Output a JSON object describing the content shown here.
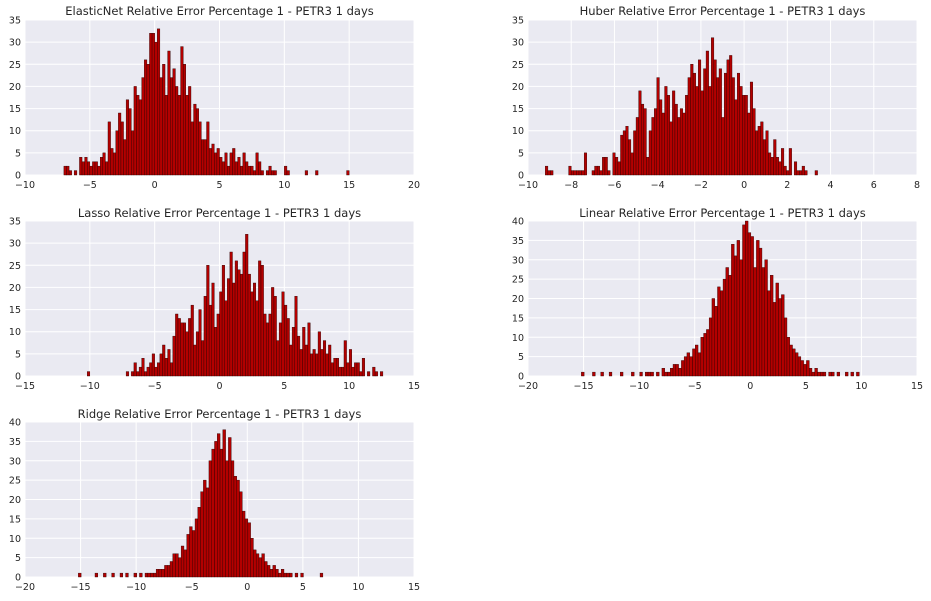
{
  "figure": {
    "background": "#ffffff",
    "axes_background": "#eaeaf2",
    "grid_color": "#ffffff",
    "bar_color": "#b30000",
    "bar_edge_color": "#2b0000"
  },
  "chart_data": [
    {
      "type": "bar",
      "title": "ElasticNet Relative Error Percentage 1 - PETR3 1 days",
      "xlabel": "",
      "ylabel": "",
      "xlim": [
        -10,
        20
      ],
      "ylim": [
        0,
        35
      ],
      "xticks": [
        "−10",
        "−5",
        "0",
        "5",
        "10",
        "15",
        "20"
      ],
      "xtick_values": [
        -10,
        -5,
        0,
        5,
        10,
        15,
        20
      ],
      "yticks": [
        "0",
        "5",
        "10",
        "15",
        "20",
        "25",
        "30",
        "35"
      ],
      "ytick_values": [
        0,
        5,
        10,
        15,
        20,
        25,
        30,
        35
      ],
      "grid": true,
      "bin_start": -7,
      "bin_width": 0.2,
      "values": [
        2,
        2,
        1,
        0,
        1,
        0,
        4,
        3,
        4,
        3,
        2,
        3,
        3,
        2,
        4,
        5,
        3,
        12,
        6,
        5,
        10,
        14,
        12,
        8,
        17,
        15,
        10,
        20,
        18,
        17,
        22,
        26,
        25,
        32,
        32,
        30,
        33,
        22,
        25,
        18,
        28,
        22,
        24,
        20,
        18,
        29,
        25,
        18,
        20,
        12,
        16,
        15,
        12,
        8,
        8,
        12,
        6,
        7,
        5,
        6,
        4,
        3,
        5,
        2,
        5,
        6,
        3,
        4,
        2,
        5,
        3,
        2,
        2,
        1,
        5,
        3,
        1,
        0,
        1,
        2,
        1,
        1,
        0,
        0,
        0,
        2,
        1,
        0,
        0,
        0,
        0,
        0,
        0,
        1,
        0,
        0,
        0,
        1,
        0,
        0,
        0,
        0,
        0,
        0,
        0,
        0,
        0,
        0,
        0,
        1
      ]
    },
    {
      "type": "bar",
      "title": "Huber Relative Error Percentage 1 - PETR3 1 days",
      "xlabel": "",
      "ylabel": "",
      "xlim": [
        -10,
        8
      ],
      "ylim": [
        0,
        35
      ],
      "xticks": [
        "−10",
        "−8",
        "−6",
        "−4",
        "−2",
        "0",
        "2",
        "4",
        "6",
        "8"
      ],
      "xtick_values": [
        -10,
        -8,
        -6,
        -4,
        -2,
        0,
        2,
        4,
        6,
        8
      ],
      "yticks": [
        "0",
        "5",
        "10",
        "15",
        "20",
        "25",
        "30",
        "35"
      ],
      "ytick_values": [
        0,
        5,
        10,
        15,
        20,
        25,
        30,
        35
      ],
      "grid": true,
      "bin_start": -9.2,
      "bin_width": 0.12,
      "values": [
        2,
        1,
        1,
        0,
        0,
        0,
        0,
        0,
        0,
        2,
        1,
        1,
        1,
        1,
        1,
        5,
        0,
        0,
        1,
        2,
        2,
        1,
        4,
        4,
        1,
        0,
        5,
        4,
        3,
        9,
        10,
        11,
        8,
        5,
        10,
        13,
        19,
        16,
        15,
        4,
        10,
        13,
        15,
        22,
        17,
        14,
        20,
        18,
        12,
        19,
        16,
        13,
        15,
        14,
        18,
        22,
        25,
        23,
        20,
        26,
        19,
        24,
        28,
        20,
        31,
        26,
        22,
        24,
        13,
        23,
        26,
        27,
        22,
        17,
        23,
        20,
        18,
        18,
        14,
        21,
        15,
        10,
        11,
        12,
        8,
        10,
        5,
        4,
        8,
        4,
        3,
        6,
        2,
        1,
        6,
        0,
        3,
        1,
        1,
        2,
        1,
        0,
        0,
        0,
        1
      ]
    },
    {
      "type": "bar",
      "title": "Lasso Relative Error Percentage 1 - PETR3 1 days",
      "xlabel": "",
      "ylabel": "",
      "xlim": [
        -15,
        15
      ],
      "ylim": [
        0,
        35
      ],
      "xticks": [
        "−15",
        "−10",
        "−5",
        "0",
        "5",
        "10",
        "15"
      ],
      "xtick_values": [
        -15,
        -10,
        -5,
        0,
        5,
        10,
        15
      ],
      "yticks": [
        "0",
        "5",
        "10",
        "15",
        "20",
        "25",
        "30",
        "35"
      ],
      "ytick_values": [
        0,
        5,
        10,
        15,
        20,
        25,
        30,
        35
      ],
      "grid": true,
      "bin_start": -10.2,
      "bin_width": 0.2,
      "values": [
        1,
        0,
        0,
        0,
        0,
        0,
        0,
        0,
        0,
        0,
        0,
        0,
        0,
        0,
        0,
        1,
        0,
        1,
        3,
        1,
        2,
        4,
        1,
        2,
        3,
        5,
        2,
        3,
        5,
        7,
        4,
        6,
        3,
        9,
        14,
        13,
        12,
        12,
        10,
        13,
        16,
        7,
        10,
        15,
        8,
        18,
        25,
        16,
        21,
        11,
        14,
        19,
        25,
        17,
        22,
        28,
        21,
        26,
        24,
        23,
        28,
        32,
        23,
        19,
        21,
        17,
        26,
        25,
        14,
        12,
        14,
        20,
        18,
        8,
        12,
        19,
        16,
        13,
        7,
        11,
        18,
        9,
        6,
        11,
        7,
        12,
        5,
        6,
        5,
        10,
        6,
        8,
        5,
        7,
        3,
        4,
        4,
        2,
        2,
        8,
        3,
        6,
        2,
        3,
        3,
        1,
        4,
        0,
        1,
        0,
        2,
        1,
        0,
        1,
        0,
        0,
        0,
        0,
        0,
        0,
        0,
        0
      ]
    },
    {
      "type": "bar",
      "title": "Linear Relative Error Percentage 1 - PETR3 1 days",
      "xlabel": "",
      "ylabel": "",
      "xlim": [
        -20,
        15
      ],
      "ylim": [
        0,
        40
      ],
      "xticks": [
        "−20",
        "−15",
        "−10",
        "−5",
        "0",
        "5",
        "10",
        "15"
      ],
      "xtick_values": [
        -20,
        -15,
        -10,
        -5,
        0,
        5,
        10,
        15
      ],
      "yticks": [
        "0",
        "5",
        "10",
        "15",
        "20",
        "25",
        "30",
        "35",
        "40"
      ],
      "ytick_values": [
        0,
        5,
        10,
        15,
        20,
        25,
        30,
        35,
        40
      ],
      "grid": true,
      "bin_start": -15.2,
      "bin_width": 0.25,
      "values": [
        1,
        0,
        0,
        0,
        1,
        0,
        0,
        1,
        0,
        0,
        1,
        0,
        0,
        0,
        1,
        0,
        0,
        0,
        1,
        0,
        0,
        1,
        0,
        1,
        1,
        1,
        0,
        1,
        0,
        2,
        1,
        1,
        2,
        3,
        3,
        2,
        4,
        5,
        6,
        5,
        7,
        8,
        6,
        10,
        11,
        12,
        15,
        20,
        18,
        23,
        22,
        25,
        28,
        26,
        34,
        31,
        35,
        30,
        39,
        40,
        37,
        36,
        28,
        35,
        33,
        28,
        30,
        22,
        26,
        19,
        24,
        20,
        21,
        15,
        10,
        8,
        7,
        6,
        5,
        4,
        3,
        4,
        2,
        1,
        2,
        1,
        1,
        1,
        0,
        1,
        1,
        0,
        1,
        0,
        0,
        1,
        0,
        1,
        0,
        1,
        0,
        0,
        0,
        0
      ]
    },
    {
      "type": "bar",
      "title": "Ridge Relative Error Percentage 1 - PETR3 1 days",
      "xlabel": "",
      "ylabel": "",
      "xlim": [
        -20,
        15
      ],
      "ylim": [
        0,
        40
      ],
      "xticks": [
        "−20",
        "−15",
        "−10",
        "−5",
        "0",
        "5",
        "10",
        "15"
      ],
      "xtick_values": [
        -20,
        -15,
        -10,
        -5,
        0,
        5,
        10,
        15
      ],
      "yticks": [
        "0",
        "5",
        "10",
        "15",
        "20",
        "25",
        "30",
        "35",
        "40"
      ],
      "ytick_values": [
        0,
        5,
        10,
        15,
        20,
        25,
        30,
        35,
        40
      ],
      "grid": true,
      "bin_start": -15.2,
      "bin_width": 0.25,
      "values": [
        1,
        0,
        0,
        0,
        0,
        0,
        1,
        0,
        0,
        1,
        0,
        0,
        1,
        0,
        0,
        1,
        0,
        1,
        0,
        0,
        1,
        0,
        1,
        0,
        1,
        1,
        1,
        1,
        2,
        2,
        2,
        3,
        3,
        4,
        6,
        6,
        5,
        8,
        7,
        11,
        13,
        12,
        15,
        18,
        22,
        25,
        23,
        30,
        33,
        35,
        37,
        33,
        38,
        30,
        36,
        30,
        26,
        25,
        22,
        17,
        15,
        14,
        10,
        7,
        6,
        5,
        6,
        4,
        3,
        2,
        3,
        2,
        1,
        2,
        1,
        1,
        1,
        0,
        1,
        0,
        1,
        0,
        0,
        0,
        0,
        0,
        0,
        1,
        0,
        0,
        0,
        0,
        0,
        0,
        0,
        0,
        0,
        0,
        0,
        0,
        0,
        0,
        0,
        0
      ]
    }
  ]
}
